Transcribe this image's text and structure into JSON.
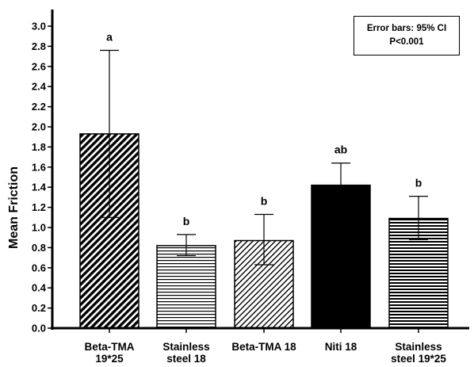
{
  "chart_data": {
    "type": "bar",
    "ylabel": "Mean Friction",
    "xlabel": "",
    "ylim": [
      0,
      3.1
    ],
    "yticks": [
      "0.0",
      "0.2",
      "0.4",
      "0.6",
      "0.8",
      "1.0",
      "1.2",
      "1.4",
      "1.6",
      "1.8",
      "2.0",
      "2.2",
      "2.4",
      "2.6",
      "2.8",
      "3.0"
    ],
    "categories": [
      [
        "Beta-TMA",
        "19*25"
      ],
      [
        "Stainless",
        "steel 18"
      ],
      [
        "Beta-TMA 18"
      ],
      [
        "Niti 18"
      ],
      [
        "Stainless",
        "steel 19*25"
      ]
    ],
    "values": [
      1.93,
      0.82,
      0.87,
      1.42,
      1.09
    ],
    "ci_lower": [
      1.1,
      0.72,
      0.63,
      1.42,
      0.88
    ],
    "ci_upper": [
      2.76,
      0.93,
      1.13,
      1.64,
      1.31
    ],
    "group_letters": [
      "a",
      "b",
      "b",
      "ab",
      "b"
    ],
    "patterns": [
      "diag-dense",
      "horizontal",
      "diag-light",
      "solid",
      "horizontal-dense"
    ],
    "annotations": [
      "Error bars: 95% CI",
      "P<0.001"
    ],
    "grid": false,
    "legend_position": "top-right"
  }
}
